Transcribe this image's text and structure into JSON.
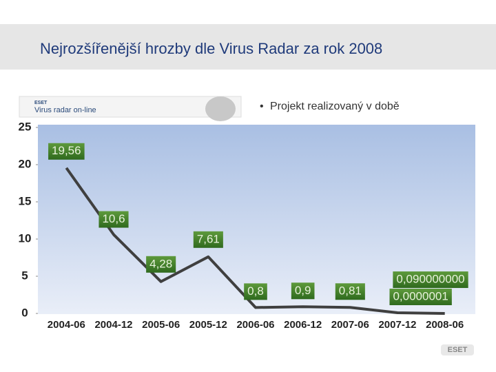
{
  "slide": {
    "title": "Nejrozšířenější hrozby dle Virus Radar za rok 2008",
    "banner": {
      "brand": "ESET",
      "title": "Virus radar on-line"
    },
    "bullet": "Projekt realizovaný v době",
    "logo": "ESET"
  },
  "chart_data": {
    "type": "line",
    "categories": [
      "2004-06",
      "2004-12",
      "2005-06",
      "2005-12",
      "2006-06",
      "2006-12",
      "2007-06",
      "2007-12",
      "2008-06"
    ],
    "values": [
      19.56,
      10.6,
      4.28,
      7.61,
      0.8,
      0.9,
      0.81,
      0.09,
      1e-07
    ],
    "value_labels": [
      "19,56",
      "10,6",
      "4,28",
      "7,61",
      "0,8",
      "0,9",
      "0,81",
      "0,090000000",
      "0,0000001"
    ],
    "color": "#3f3f3f",
    "ylim": [
      0,
      25
    ],
    "yticks": [
      0,
      5,
      10,
      15,
      20,
      25
    ],
    "grid": false
  }
}
